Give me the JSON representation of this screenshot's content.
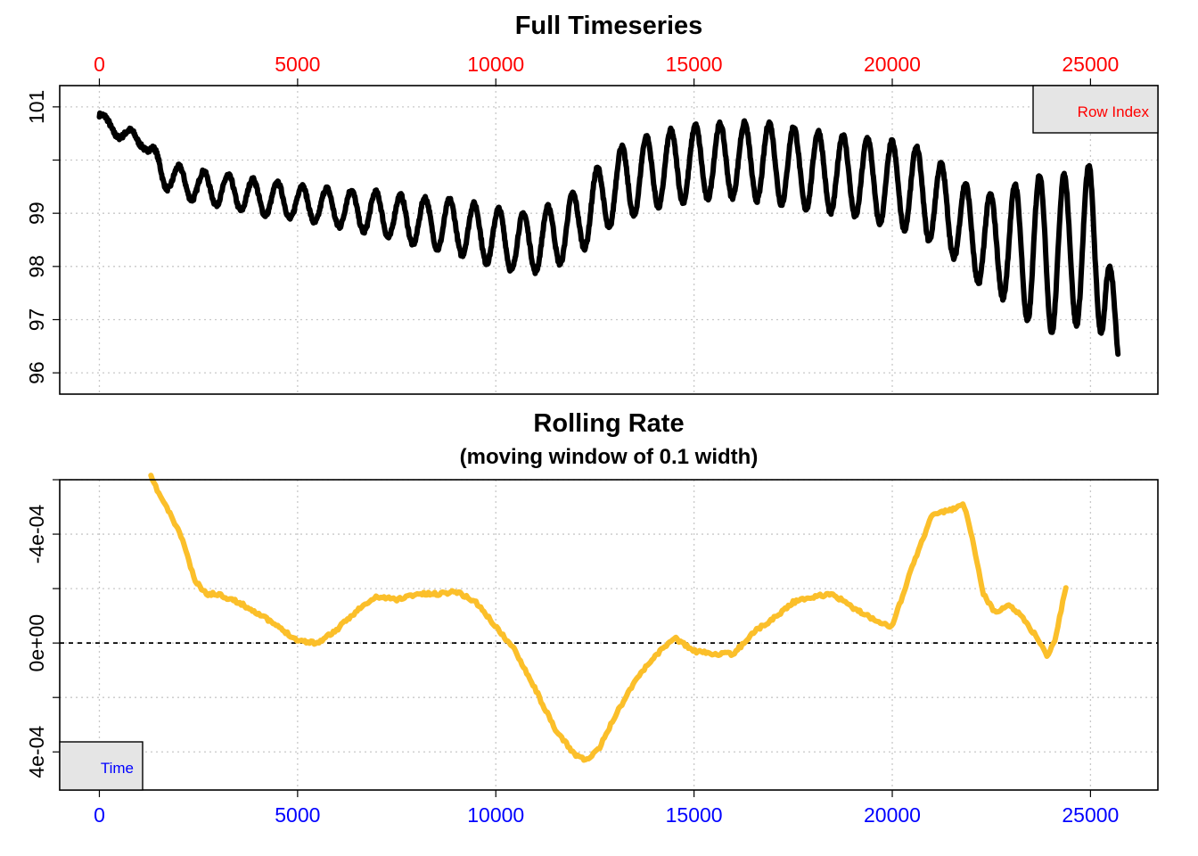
{
  "colors": {
    "top_axis": "#ff0000",
    "bottom_axis": "#0000ff",
    "series_top": "#000000",
    "series_bottom": "#fbbf2a",
    "grid": "#c8c8c8",
    "legend_fill": "#e5e5e5"
  },
  "chart_data": [
    {
      "type": "line",
      "title": "Full Timeseries",
      "xlabel": "",
      "ylabel": "",
      "xlim": [
        -1000,
        26700
      ],
      "ylim": [
        95.6,
        101.4
      ],
      "x_ticks": [
        0,
        5000,
        10000,
        15000,
        20000,
        25000
      ],
      "x_tick_labels": [
        "0",
        "5000",
        "10000",
        "15000",
        "20000",
        "25000"
      ],
      "x_axis_position": "top",
      "y_ticks": [
        96,
        97,
        98,
        99,
        101
      ],
      "y_tick_labels": [
        "96",
        "97",
        "98",
        "99",
        "101"
      ],
      "y_minor_ticks": [
        100
      ],
      "grid": true,
      "legend": {
        "label": "Row Index",
        "placement": "top-right"
      },
      "series": [
        {
          "x": [
            0,
            300,
            700,
            1100,
            1300,
            1600,
            2200,
            3000,
            4000,
            5000,
            6000,
            7000,
            8000,
            9000,
            10000,
            10500,
            11000,
            11500,
            12000,
            12500,
            13000,
            14000,
            15000,
            16000,
            17000,
            18000,
            19000,
            20000,
            20600,
            21500,
            22000,
            22500,
            23000,
            23500,
            24000,
            24500,
            25000,
            25400,
            25700
          ],
          "y": [
            100.85,
            100.6,
            100.45,
            100.4,
            100.1,
            99.75,
            99.55,
            99.45,
            99.3,
            99.2,
            99.1,
            99.0,
            98.85,
            98.75,
            98.55,
            98.45,
            98.45,
            98.6,
            98.8,
            99.15,
            99.5,
            99.8,
            99.95,
            100.0,
            99.95,
            99.8,
            99.7,
            99.55,
            99.45,
            99.0,
            98.6,
            98.45,
            98.4,
            98.3,
            98.25,
            98.3,
            98.4,
            97.9,
            96.15
          ],
          "amplitude": [
            0.08,
            0.1,
            0.12,
            0.15,
            0.2,
            0.25,
            0.28,
            0.3,
            0.32,
            0.32,
            0.35,
            0.4,
            0.45,
            0.5,
            0.55,
            0.55,
            0.55,
            0.6,
            0.6,
            0.65,
            0.7,
            0.7,
            0.7,
            0.7,
            0.75,
            0.75,
            0.75,
            0.8,
            0.8,
            0.8,
            0.85,
            0.9,
            1.1,
            1.4,
            1.5,
            1.4,
            1.5,
            1.2,
            0.3
          ],
          "period": 620
        }
      ]
    },
    {
      "type": "line",
      "title": "Rolling Rate",
      "subtitle": "(moving window of 0.1 width)",
      "xlabel": "",
      "ylabel": "",
      "xlim": [
        -1000,
        26700
      ],
      "ylim": [
        0.00054,
        -0.0006
      ],
      "x_ticks": [
        0,
        5000,
        10000,
        15000,
        20000,
        25000
      ],
      "x_tick_labels": [
        "0",
        "5000",
        "10000",
        "15000",
        "20000",
        "25000"
      ],
      "x_axis_position": "bottom",
      "y_ticks": [
        0.0004,
        0,
        -0.0004
      ],
      "y_tick_labels": [
        "4e-04",
        "0e+00",
        "-4e-04"
      ],
      "y_minor_ticks": [
        0.0002,
        -0.0002,
        -0.0006
      ],
      "grid": true,
      "reference_line": 0,
      "legend": {
        "label": "Time",
        "placement": "bottom-left"
      },
      "series": [
        {
          "x": [
            1300,
            1500,
            1800,
            2100,
            2400,
            2700,
            3000,
            3500,
            4000,
            4500,
            5000,
            5500,
            6000,
            6500,
            7000,
            7500,
            8000,
            8500,
            9000,
            9500,
            10000,
            10500,
            11000,
            11500,
            12000,
            12300,
            12600,
            13000,
            13500,
            14000,
            14500,
            15000,
            15500,
            16000,
            16500,
            17000,
            17500,
            18000,
            18500,
            19000,
            19500,
            20000,
            20500,
            21000,
            21500,
            21800,
            22000,
            22300,
            22600,
            22900,
            23200,
            23500,
            23700,
            23900,
            24100,
            24400
          ],
          "y": [
            -0.00061,
            -0.00055,
            -0.00047,
            -0.00038,
            -0.00023,
            -0.00018,
            -0.00018,
            -0.00015,
            -0.00011,
            -6e-05,
            -1e-05,
            0.0,
            -5e-05,
            -0.00012,
            -0.00017,
            -0.00016,
            -0.00018,
            -0.00018,
            -0.00019,
            -0.00015,
            -6e-05,
            3e-05,
            0.00017,
            0.00032,
            0.00041,
            0.00043,
            0.00039,
            0.00027,
            0.00014,
            5e-05,
            -2e-05,
            3e-05,
            4e-05,
            4e-05,
            -4e-05,
            -9e-05,
            -0.00015,
            -0.00017,
            -0.00018,
            -0.00013,
            -9e-05,
            -6e-05,
            -0.00028,
            -0.00047,
            -0.00049,
            -0.00051,
            -0.0004,
            -0.00018,
            -0.00011,
            -0.00014,
            -0.00011,
            -5e-05,
            -1e-05,
            5e-05,
            -1e-05,
            -0.00022
          ]
        }
      ]
    }
  ]
}
